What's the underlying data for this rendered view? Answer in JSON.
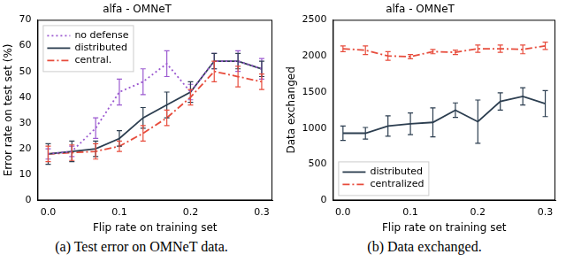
{
  "chart_data": [
    {
      "type": "line",
      "title": "alfa - OMNeT",
      "caption": "(a) Test error on OMNeT data.",
      "x_label": "Flip rate on training set",
      "y_label": "Error rate on test set (%)",
      "x": [
        0,
        0.0333,
        0.0667,
        0.1,
        0.1333,
        0.1667,
        0.2,
        0.2333,
        0.2667,
        0.3
      ],
      "xlim": [
        -0.015,
        0.315
      ],
      "xticks": [
        {
          "value": 0,
          "label": "0.0"
        },
        0.1,
        0.2,
        0.3
      ],
      "ylim": [
        0,
        70
      ],
      "yticks": [
        0,
        10,
        20,
        30,
        40,
        50,
        60,
        70
      ],
      "grid": false,
      "legend": "upper left",
      "series": [
        {
          "name": "no defense",
          "color": "#9b59d0",
          "line_style": "dotted",
          "values": [
            18,
            19,
            28,
            42,
            46,
            53,
            42,
            54,
            54,
            51
          ],
          "errors": [
            2,
            2,
            4,
            5,
            5,
            5,
            3,
            3,
            4,
            4
          ]
        },
        {
          "name": "distributed",
          "color": "#2c3e50",
          "line_style": "solid",
          "values": [
            18,
            19,
            20,
            24,
            32,
            37,
            42,
            54,
            54,
            51
          ],
          "errors": [
            4,
            4,
            3,
            3,
            4,
            5,
            4,
            3,
            3,
            3
          ]
        },
        {
          "name": "central.",
          "color": "#e74c3c",
          "line_style": "dashdot",
          "values": [
            18,
            18.5,
            19,
            21,
            26,
            32,
            40,
            50,
            48,
            46
          ],
          "errors": [
            3,
            3,
            3,
            2,
            3,
            3,
            3,
            4,
            4,
            3
          ]
        }
      ]
    },
    {
      "type": "line",
      "title": "alfa - OMNeT",
      "caption": "(b) Data exchanged.",
      "x_label": "Flip rate on training set",
      "y_label": "Data exchanged",
      "x": [
        0,
        0.0333,
        0.0667,
        0.1,
        0.1333,
        0.1667,
        0.2,
        0.2333,
        0.2667,
        0.3
      ],
      "xlim": [
        -0.015,
        0.315
      ],
      "xticks": [
        {
          "value": 0,
          "label": "0.0"
        },
        0.1,
        0.2,
        0.3
      ],
      "ylim": [
        0,
        2500
      ],
      "yticks": [
        0,
        500,
        1000,
        1500,
        2000,
        2500
      ],
      "grid": false,
      "legend": "lower left",
      "series": [
        {
          "name": "distributed",
          "color": "#2c3e50",
          "line_style": "solid",
          "values": [
            930,
            930,
            1030,
            1060,
            1080,
            1250,
            1090,
            1370,
            1440,
            1340
          ],
          "errors": [
            100,
            80,
            140,
            150,
            200,
            100,
            300,
            120,
            120,
            180
          ]
        },
        {
          "name": "centralized",
          "color": "#e74c3c",
          "line_style": "dashdot",
          "values": [
            2100,
            2080,
            2000,
            1990,
            2060,
            2050,
            2100,
            2100,
            2090,
            2140
          ],
          "errors": [
            40,
            60,
            60,
            30,
            30,
            30,
            50,
            50,
            60,
            50
          ]
        }
      ]
    }
  ]
}
